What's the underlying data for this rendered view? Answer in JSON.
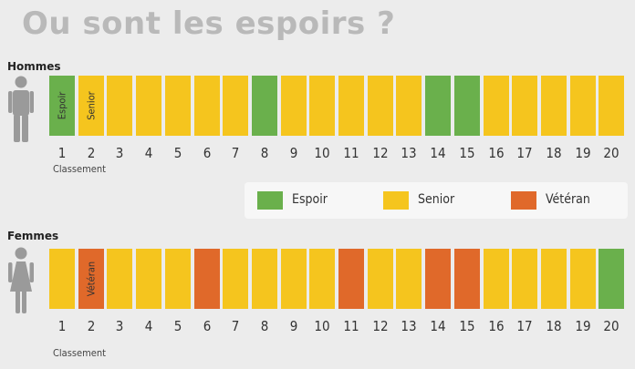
{
  "title": "Ou sont les espoirs ?",
  "legend": [
    {
      "label": "Espoir",
      "color": "#6ab04c"
    },
    {
      "label": "Senior",
      "color": "#f5c51e"
    },
    {
      "label": "Vétéran",
      "color": "#e0692a"
    }
  ],
  "axis_label": "Classement",
  "chart_data": [
    {
      "type": "table",
      "group": "Hommes",
      "x": [
        1,
        2,
        3,
        4,
        5,
        6,
        7,
        8,
        9,
        10,
        11,
        12,
        13,
        14,
        15,
        16,
        17,
        18,
        19,
        20
      ],
      "categories": [
        "Espoir",
        "Senior",
        "Senior",
        "Senior",
        "Senior",
        "Senior",
        "Senior",
        "Espoir",
        "Senior",
        "Senior",
        "Senior",
        "Senior",
        "Senior",
        "Espoir",
        "Espoir",
        "Senior",
        "Senior",
        "Senior",
        "Senior",
        "Senior"
      ],
      "box_labels": {
        "1": "Espoir",
        "2": "Senior"
      },
      "xlabel": "Classement"
    },
    {
      "type": "table",
      "group": "Femmes",
      "x": [
        1,
        2,
        3,
        4,
        5,
        6,
        7,
        8,
        9,
        10,
        11,
        12,
        13,
        14,
        15,
        16,
        17,
        18,
        19,
        20
      ],
      "categories": [
        "Senior",
        "Vétéran",
        "Senior",
        "Senior",
        "Senior",
        "Vétéran",
        "Senior",
        "Senior",
        "Senior",
        "Senior",
        "Vétéran",
        "Senior",
        "Senior",
        "Vétéran",
        "Vétéran",
        "Senior",
        "Senior",
        "Senior",
        "Senior",
        "Espoir"
      ],
      "box_labels": {
        "2": "Vétéran"
      },
      "xlabel": "Classement"
    }
  ]
}
